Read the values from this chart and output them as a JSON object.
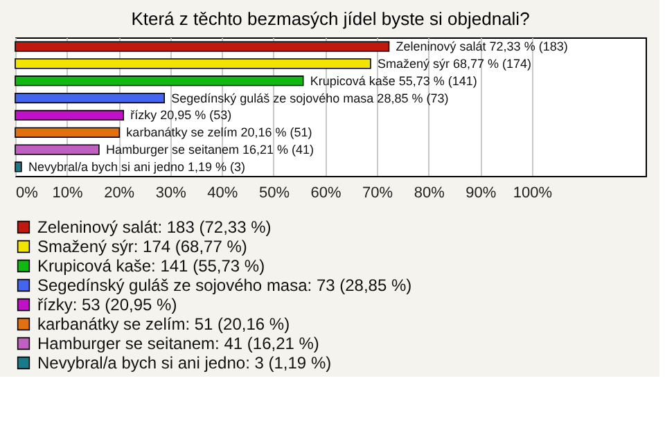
{
  "chart_data": {
    "type": "bar",
    "orientation": "horizontal",
    "title": "Která z těchto bezmasých jídel byste si objednali?",
    "categories": [
      null,
      null,
      null,
      null,
      null,
      null,
      null,
      null
    ],
    "series": [
      {
        "name": "Zeleninový salát: 183 (72,33 %)",
        "color": "#c0190f",
        "values": [
          72.33,
          null,
          null,
          null,
          null,
          null,
          null,
          null
        ],
        "value_labels": [
          "Zeleninový salát 72,33 % (183)",
          null,
          null,
          null,
          null,
          null,
          null,
          null
        ]
      },
      {
        "name": "Smažený sýr: 174 (68,77 %)",
        "color": "#f2e400",
        "values": [
          null,
          68.77,
          null,
          null,
          null,
          null,
          null,
          null
        ],
        "value_labels": [
          null,
          "Smažený sýr 68,77 % (174)",
          null,
          null,
          null,
          null,
          null,
          null
        ]
      },
      {
        "name": "Krupicová kaše: 141 (55,73 %)",
        "color": "#12b812",
        "values": [
          null,
          null,
          55.73,
          null,
          null,
          null,
          null,
          null
        ],
        "value_labels": [
          null,
          null,
          "Krupicová kaše 55,73 % (141)",
          null,
          null,
          null,
          null,
          null
        ]
      },
      {
        "name": "Segedínský guláš ze sojového masa: 73 (28,85 %)",
        "color": "#4466ee",
        "values": [
          null,
          null,
          null,
          28.85,
          null,
          null,
          null,
          null
        ],
        "value_labels": [
          null,
          null,
          null,
          "Segedínský guláš ze sojového masa 28,85 % (73)",
          null,
          null,
          null,
          null
        ]
      },
      {
        "name": "řízky: 53 (20,95 %)",
        "color": "#c010c8",
        "values": [
          null,
          null,
          null,
          null,
          20.95,
          null,
          null,
          null
        ],
        "value_labels": [
          null,
          null,
          null,
          null,
          "řízky 20,95 % (53)",
          null,
          null,
          null
        ]
      },
      {
        "name": "karbanátky se zelím: 51 (20,16 %)",
        "color": "#e07010",
        "values": [
          null,
          null,
          null,
          null,
          null,
          20.16,
          null,
          null
        ],
        "value_labels": [
          null,
          null,
          null,
          null,
          null,
          "karbanátky se zelím 20,16 % (51)",
          null,
          null
        ]
      },
      {
        "name": "Hamburger se seitanem: 41 (16,21 %)",
        "color": "#c060c0",
        "values": [
          null,
          null,
          null,
          null,
          null,
          null,
          16.21,
          null
        ],
        "value_labels": [
          null,
          null,
          null,
          null,
          null,
          null,
          "Hamburger se seitanem 16,21 % (41)",
          null
        ]
      },
      {
        "name": "Nevybral/a bych si ani jedno: 3 (1,19 %)",
        "color": "#1a7a8a",
        "values": [
          null,
          null,
          null,
          null,
          null,
          null,
          null,
          1.19
        ],
        "value_labels": [
          null,
          null,
          null,
          null,
          null,
          null,
          null,
          "Nevybral/a bych si ani jedno 1,19 % (3)"
        ]
      }
    ],
    "xlim": [
      0,
      122
    ],
    "xticks": [
      {
        "value": 0,
        "label": "0%"
      },
      {
        "value": 10,
        "label": "10%"
      },
      {
        "value": 20,
        "label": "20%"
      },
      {
        "value": 30,
        "label": "30%"
      },
      {
        "value": 40,
        "label": "40%"
      },
      {
        "value": 50,
        "label": "50%"
      },
      {
        "value": 60,
        "label": "60%"
      },
      {
        "value": 70,
        "label": "70%"
      },
      {
        "value": 80,
        "label": "80%"
      },
      {
        "value": 90,
        "label": "90%"
      },
      {
        "value": 100,
        "label": "100%"
      }
    ],
    "grid": "x",
    "legend": "bottom",
    "tick_labels": "x"
  }
}
